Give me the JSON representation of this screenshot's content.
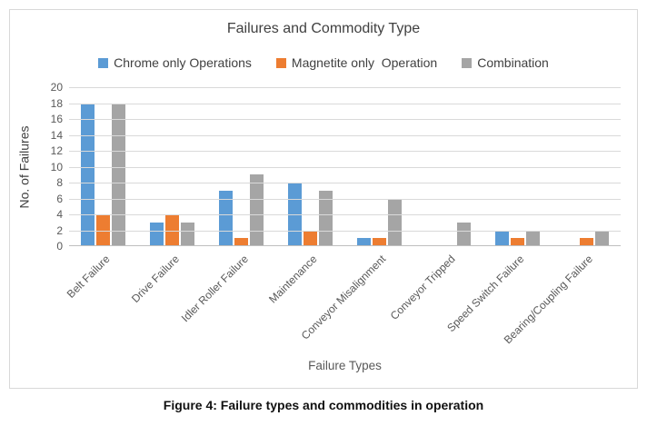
{
  "figure": {
    "caption": "Figure 4: Failure types and commodities in operation"
  },
  "chart_data": {
    "type": "bar",
    "title": "Failures and Commodity Type",
    "xlabel": "Failure Types",
    "ylabel": "No. of Failures",
    "ylim": [
      0,
      20
    ],
    "ytick_step": 2,
    "grid": true,
    "legend_position": "top",
    "categories": [
      "Belt Failure",
      "Drive Failure",
      "Idler Roller Failure",
      "Maintenance",
      "Conveyor Misalignment",
      "Conveyor Tripped",
      "Speed Switch Failure",
      "Bearing/Coupling Failure"
    ],
    "series": [
      {
        "name": "Chrome only Operations",
        "color": "#5B9BD5",
        "values": [
          18,
          3,
          7,
          8,
          1,
          0,
          2,
          0
        ]
      },
      {
        "name": "Magnetite only  Operation",
        "color": "#ED7D31",
        "values": [
          4,
          4,
          1,
          2,
          1,
          0,
          1,
          1
        ]
      },
      {
        "name": "Combination",
        "color": "#A5A5A5",
        "values": [
          18,
          3,
          9,
          7,
          6,
          3,
          2,
          2
        ]
      }
    ],
    "colors": {
      "gridline": "#D9D9D9",
      "axis_line": "#BFBFBF",
      "title_text": "#404040",
      "tick_text": "#595959"
    }
  }
}
